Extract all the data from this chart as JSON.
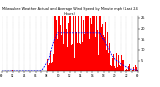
{
  "title": "Milwaukee Weather Actual and Average Wind Speed by Minute mph (Last 24 Hours)",
  "bg_color": "#ffffff",
  "bar_color": "#ff0000",
  "line_color": "#0000ff",
  "grid_color": "#888888",
  "n_points": 1440,
  "ylim": [
    0,
    26
  ],
  "yticks": [
    5,
    10,
    15,
    20,
    25
  ],
  "seed": 7
}
